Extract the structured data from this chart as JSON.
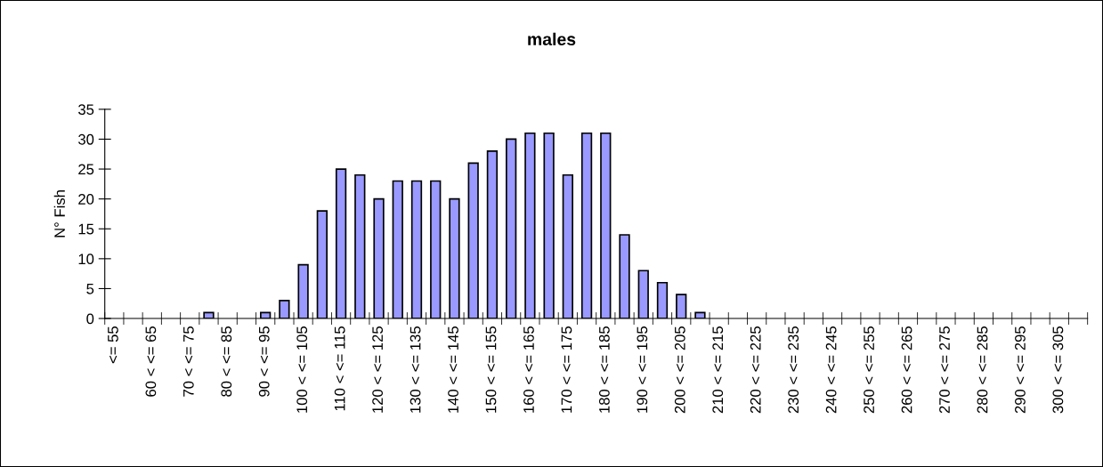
{
  "chart_data": {
    "type": "bar",
    "title": "males",
    "ylabel": "N° Fish",
    "categories": [
      "<= 55",
      null,
      "60 < <= 65",
      null,
      "70 < <= 75",
      null,
      "80 < <= 85",
      null,
      "90 < <= 95",
      null,
      "100 < <= 105",
      null,
      "110 < <= 115",
      null,
      "120 < <= 125",
      null,
      "130 < <= 135",
      null,
      "140 < <= 145",
      null,
      "150 < <= 155",
      null,
      "160 < <= 165",
      null,
      "170 < <= 175",
      null,
      "180 < <= 185",
      null,
      "190 < <= 195",
      null,
      "200 < <= 205",
      null,
      "210 < <= 215",
      null,
      "220 < <= 225",
      null,
      "230 < <= 235",
      null,
      "240 < <= 245",
      null,
      "250 < <= 255",
      null,
      "260 < <= 265",
      null,
      "270 < <= 275",
      null,
      "280 < <= 285",
      null,
      "290 < <= 295",
      null,
      "300 < <= 305",
      null
    ],
    "values": [
      0,
      0,
      0,
      0,
      0,
      1,
      0,
      0,
      1,
      3,
      9,
      18,
      25,
      24,
      20,
      23,
      23,
      23,
      20,
      26,
      28,
      30,
      31,
      31,
      24,
      31,
      31,
      14,
      8,
      6,
      4,
      1,
      0,
      0,
      0,
      0,
      0,
      0,
      0,
      0,
      0,
      0,
      0,
      0,
      0,
      0,
      0,
      0,
      0,
      0,
      0,
      0
    ],
    "color": "#9999ff",
    "ylim": [
      0,
      35
    ],
    "yticks": [
      0,
      5,
      10,
      15,
      20,
      25,
      30,
      35
    ],
    "grid": false,
    "legend": false
  }
}
